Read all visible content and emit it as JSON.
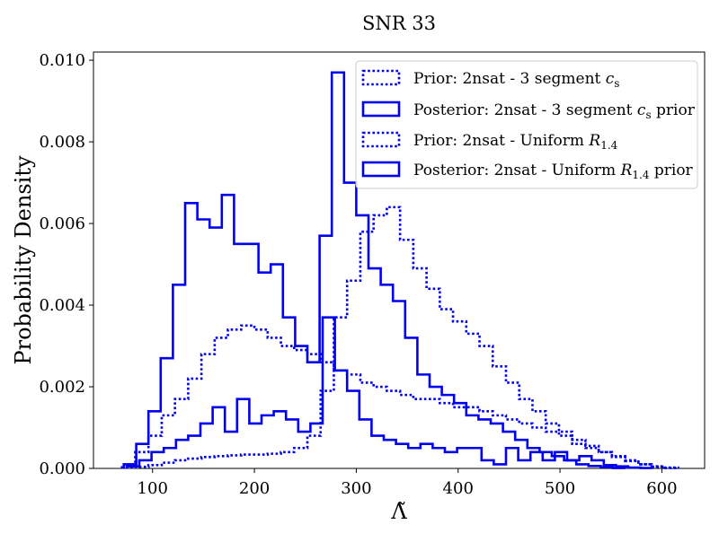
{
  "chart_data": {
    "type": "histogram",
    "title": "SNR 33",
    "xlabel": "Λ̃",
    "ylabel": "Probability Density",
    "xlim": [
      42,
      642
    ],
    "ylim": [
      0,
      0.0102
    ],
    "x_ticks": [
      100,
      200,
      300,
      400,
      500,
      600
    ],
    "y_ticks": [
      0.0,
      0.002,
      0.004,
      0.006,
      0.008,
      0.01
    ],
    "x_tick_labels": [
      "100",
      "200",
      "300",
      "400",
      "500",
      "600"
    ],
    "y_tick_labels": [
      "0.000",
      "0.002",
      "0.004",
      "0.006",
      "0.008",
      "0.010"
    ],
    "grid": false,
    "legend_position": "top-right",
    "colors": {
      "series": "#0000ee",
      "axis": "#000000",
      "background": "#ffffff"
    },
    "series": [
      {
        "name": "Prior: 2nsat - 3 segment cs",
        "label_main": "Prior: 2nsat - 3 segment ",
        "label_sym": "c",
        "label_sub": "s",
        "label_tail": "",
        "style": "dotted",
        "edges": [
          70,
          83,
          96,
          109,
          122,
          135,
          148,
          161,
          174,
          187,
          200,
          213,
          226,
          239,
          252,
          265,
          278,
          291,
          304,
          317,
          330,
          343,
          356,
          369,
          382,
          395,
          408,
          421,
          434,
          447,
          460,
          473,
          486,
          499,
          512,
          525,
          538,
          551,
          564,
          577,
          590,
          603,
          616
        ],
        "values": [
          2e-05,
          4e-05,
          8e-05,
          0.00014,
          0.0002,
          0.00024,
          0.00028,
          0.0003,
          0.00032,
          0.00034,
          0.00034,
          0.00036,
          0.0004,
          0.0005,
          0.0008,
          0.0019,
          0.0037,
          0.0046,
          0.0058,
          0.0062,
          0.0064,
          0.0056,
          0.0049,
          0.0044,
          0.0039,
          0.0036,
          0.0033,
          0.003,
          0.0025,
          0.0021,
          0.0017,
          0.0014,
          0.0011,
          0.0009,
          0.0007,
          0.00055,
          0.0004,
          0.00028,
          0.00018,
          0.0001,
          4e-05,
          1e-05
        ]
      },
      {
        "name": "Posterior: 2nsat - 3 segment cs prior",
        "label_main": "Posterior: 2nsat - 3 segment ",
        "label_sym": "c",
        "label_sub": "s",
        "label_tail": " prior",
        "style": "solid",
        "edges": [
          75,
          87,
          99,
          111,
          123,
          135,
          147,
          159,
          171,
          183,
          195,
          207,
          219,
          231,
          243,
          255,
          267,
          279,
          291,
          303,
          315,
          327,
          339,
          351,
          363,
          375,
          387,
          399,
          411,
          423,
          435,
          447,
          459,
          471,
          483,
          495,
          507,
          519,
          531,
          543,
          555,
          567,
          579,
          591
        ],
        "values": [
          5e-05,
          0.0002,
          0.0004,
          0.0005,
          0.0007,
          0.0008,
          0.0011,
          0.0015,
          0.0009,
          0.0017,
          0.0011,
          0.0013,
          0.0014,
          0.0012,
          0.0009,
          0.0011,
          0.0037,
          0.0024,
          0.0019,
          0.0012,
          0.0008,
          0.0007,
          0.0006,
          0.0005,
          0.0006,
          0.0005,
          0.0004,
          0.0005,
          0.0005,
          0.0002,
          0.0001,
          0.0005,
          0.0002,
          0.0004,
          0.0002,
          0.0004,
          0.0002,
          0.0003,
          0.0002,
          8e-05,
          5e-05,
          2e-05,
          1e-05
        ]
      },
      {
        "name": "Prior: 2nsat - Uniform R1.4",
        "label_main": "Prior: 2nsat - Uniform ",
        "label_sym": "R",
        "label_sub": "1.4",
        "label_tail": "",
        "style": "dotted",
        "edges": [
          70,
          83,
          96,
          109,
          122,
          135,
          148,
          161,
          174,
          187,
          200,
          213,
          226,
          239,
          252,
          265,
          278,
          291,
          304,
          317,
          330,
          343,
          356,
          369,
          382,
          395,
          408,
          421,
          434,
          447,
          460,
          473,
          486,
          499,
          512,
          525,
          538,
          551,
          564,
          577,
          590,
          603,
          616
        ],
        "values": [
          0.0001,
          0.0004,
          0.0008,
          0.0013,
          0.0017,
          0.0022,
          0.0028,
          0.0032,
          0.0034,
          0.0035,
          0.0034,
          0.0032,
          0.003,
          0.0029,
          0.0028,
          0.0026,
          0.0024,
          0.0023,
          0.0021,
          0.002,
          0.0019,
          0.0018,
          0.0017,
          0.0017,
          0.0016,
          0.0015,
          0.0015,
          0.0014,
          0.0013,
          0.0012,
          0.0011,
          0.001,
          0.0009,
          0.0008,
          0.0006,
          0.0005,
          0.0004,
          0.0003,
          0.0002,
          0.0001,
          5e-05,
          2e-05
        ]
      },
      {
        "name": "Posterior: 2nsat - Uniform R1.4 prior",
        "label_main": "Posterior: 2nsat - Uniform ",
        "label_sym": "R",
        "label_sub": "1.4",
        "label_tail": " prior",
        "style": "solid",
        "edges": [
          72,
          84,
          96,
          108,
          120,
          132,
          144,
          156,
          168,
          180,
          192,
          204,
          216,
          228,
          240,
          252,
          264,
          276,
          288,
          300,
          312,
          324,
          336,
          348,
          360,
          372,
          384,
          396,
          408,
          420,
          432,
          444,
          456,
          468,
          480,
          492,
          504,
          516,
          528,
          540,
          552,
          564
        ],
        "values": [
          0.0001,
          0.0006,
          0.0014,
          0.0027,
          0.0045,
          0.0065,
          0.0061,
          0.0059,
          0.0067,
          0.0055,
          0.0055,
          0.0048,
          0.005,
          0.0037,
          0.003,
          0.0026,
          0.0057,
          0.0097,
          0.007,
          0.0062,
          0.0049,
          0.0045,
          0.0041,
          0.0032,
          0.0023,
          0.002,
          0.0018,
          0.0016,
          0.0013,
          0.0012,
          0.0011,
          0.0009,
          0.0007,
          0.0005,
          0.0004,
          0.0003,
          0.0002,
          0.0001,
          6e-05,
          3e-05,
          1e-05
        ]
      }
    ]
  }
}
